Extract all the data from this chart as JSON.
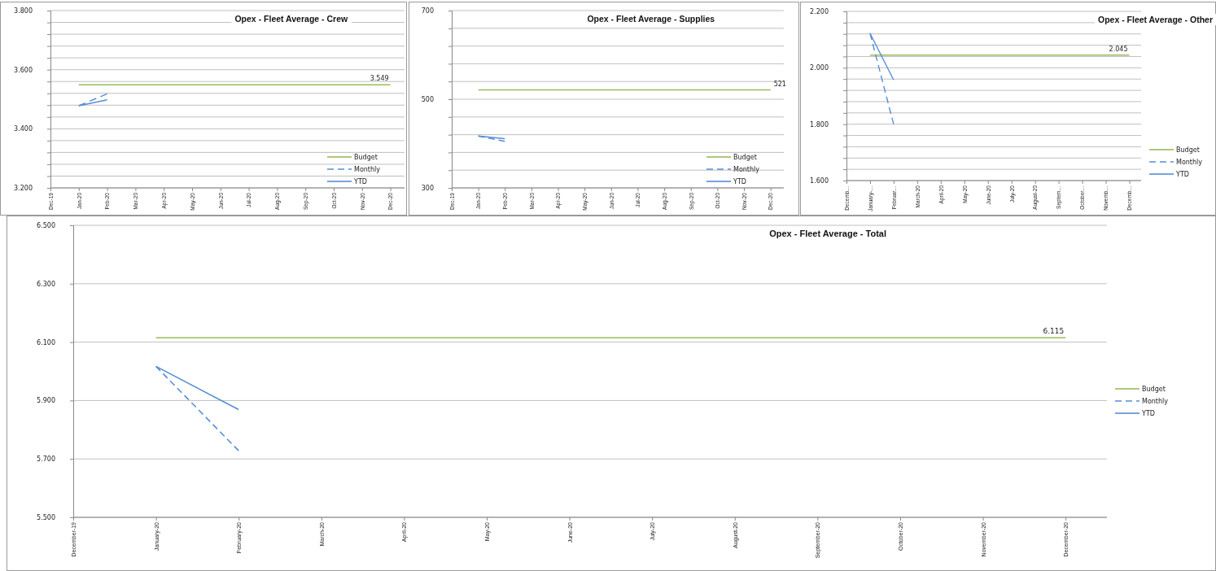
{
  "chart_data": [
    {
      "type": "line",
      "title": "Opex - Fleet Average - Crew",
      "categories": [
        "Dec-19",
        "Jan-20",
        "Feb-20",
        "Mar-20",
        "Apr-20",
        "May-20",
        "Jun-20",
        "Jul-20",
        "Aug-20",
        "Sep-20",
        "Oct-20",
        "Nov-20",
        "Dec-20"
      ],
      "series": [
        {
          "name": "Budget",
          "color": "#9bbb59",
          "line_style": "solid",
          "values": [
            null,
            3549,
            3549,
            3549,
            3549,
            3549,
            3549,
            3549,
            3549,
            3549,
            3549,
            3549,
            3549
          ],
          "value_labels": [
            null,
            null,
            null,
            null,
            null,
            null,
            null,
            null,
            null,
            null,
            null,
            null,
            "3.549"
          ]
        },
        {
          "name": "Monthly",
          "color": "#558ed5",
          "line_style": "dashed",
          "values": [
            null,
            3478,
            3518,
            null,
            null,
            null,
            null,
            null,
            null,
            null,
            null,
            null,
            null
          ]
        },
        {
          "name": "YTD",
          "color": "#558ed5",
          "line_style": "solid",
          "values": [
            null,
            3478,
            3498,
            null,
            null,
            null,
            null,
            null,
            null,
            null,
            null,
            null,
            null
          ]
        }
      ],
      "ylim": [
        3200,
        3800
      ],
      "yticks": [
        {
          "value": 3200,
          "label": "3.200"
        },
        {
          "value": 3240,
          "label": null
        },
        {
          "value": 3280,
          "label": null
        },
        {
          "value": 3320,
          "label": null
        },
        {
          "value": 3360,
          "label": null
        },
        {
          "value": 3400,
          "label": "3.400"
        },
        {
          "value": 3440,
          "label": null
        },
        {
          "value": 3480,
          "label": null
        },
        {
          "value": 3520,
          "label": null
        },
        {
          "value": 3560,
          "label": null
        },
        {
          "value": 3600,
          "label": "3.600"
        },
        {
          "value": 3640,
          "label": null
        },
        {
          "value": 3680,
          "label": null
        },
        {
          "value": 3720,
          "label": null
        },
        {
          "value": 3760,
          "label": null
        },
        {
          "value": 3800,
          "label": "3.800"
        }
      ],
      "grid": true,
      "legend": "bottom right"
    },
    {
      "type": "line",
      "title": "Opex - Fleet Average - Supplies",
      "categories": [
        "Dec-19",
        "Jan-20",
        "Feb-20",
        "Mar-20",
        "Apr-20",
        "May-20",
        "Jun-20",
        "Jul-20",
        "Aug-20",
        "Sep-20",
        "Oct-20",
        "Nov-20",
        "Dec-20"
      ],
      "series": [
        {
          "name": "Budget",
          "color": "#9bbb59",
          "line_style": "solid",
          "values": [
            null,
            521,
            521,
            521,
            521,
            521,
            521,
            521,
            521,
            521,
            521,
            521,
            521
          ],
          "value_labels": [
            null,
            null,
            null,
            null,
            null,
            null,
            null,
            null,
            null,
            null,
            null,
            null,
            "521"
          ]
        },
        {
          "name": "Monthly",
          "color": "#558ed5",
          "line_style": "dashed",
          "values": [
            null,
            417,
            405,
            null,
            null,
            null,
            null,
            null,
            null,
            null,
            null,
            null,
            null
          ]
        },
        {
          "name": "YTD",
          "color": "#558ed5",
          "line_style": "solid",
          "values": [
            null,
            417,
            411,
            null,
            null,
            null,
            null,
            null,
            null,
            null,
            null,
            null,
            null
          ]
        }
      ],
      "ylim": [
        300,
        700
      ],
      "yticks": [
        300,
        {
          "value": 340,
          "label": null
        },
        {
          "value": 380,
          "label": null
        },
        {
          "value": 420,
          "label": null
        },
        {
          "value": 460,
          "label": null
        },
        500,
        {
          "value": 540,
          "label": null
        },
        {
          "value": 580,
          "label": null
        },
        {
          "value": 620,
          "label": null
        },
        {
          "value": 660,
          "label": null
        },
        700
      ],
      "grid": true,
      "legend": "bottom right"
    },
    {
      "type": "line",
      "title": "Opex - Fleet Average - Other",
      "categories": [
        "Decemb…",
        "January-…",
        "Februar…",
        "March-20",
        "April-20",
        "May-20",
        "June-20",
        "July-20",
        "August-20",
        "Septem…",
        "October…",
        "Novemb…",
        "Decemb…"
      ],
      "series": [
        {
          "name": "Budget",
          "color": "#9bbb59",
          "line_style": "solid",
          "values": [
            null,
            2045,
            2045,
            2045,
            2045,
            2045,
            2045,
            2045,
            2045,
            2045,
            2045,
            2045,
            2045
          ],
          "value_labels": [
            null,
            null,
            null,
            null,
            null,
            null,
            null,
            null,
            null,
            null,
            null,
            null,
            "2.045"
          ]
        },
        {
          "name": "Monthly",
          "color": "#558ed5",
          "line_style": "dashed",
          "values": [
            null,
            2122,
            1800,
            null,
            null,
            null,
            null,
            null,
            null,
            null,
            null,
            null,
            null
          ]
        },
        {
          "name": "YTD",
          "color": "#558ed5",
          "line_style": "solid",
          "values": [
            null,
            2122,
            1957,
            null,
            null,
            null,
            null,
            null,
            null,
            null,
            null,
            null,
            null
          ]
        }
      ],
      "ylim": [
        1600,
        2200
      ],
      "yticks": [
        {
          "value": 1600,
          "label": "1.600"
        },
        {
          "value": 1640,
          "label": null
        },
        {
          "value": 1680,
          "label": null
        },
        {
          "value": 1720,
          "label": null
        },
        {
          "value": 1760,
          "label": null
        },
        {
          "value": 1800,
          "label": "1.800"
        },
        {
          "value": 1840,
          "label": null
        },
        {
          "value": 1880,
          "label": null
        },
        {
          "value": 1920,
          "label": null
        },
        {
          "value": 1960,
          "label": null
        },
        {
          "value": 2000,
          "label": "2.000"
        },
        {
          "value": 2040,
          "label": null
        },
        {
          "value": 2080,
          "label": null
        },
        {
          "value": 2120,
          "label": null
        },
        {
          "value": 2160,
          "label": null
        },
        {
          "value": 2200,
          "label": "2.200"
        }
      ],
      "grid": true,
      "legend": "right"
    },
    {
      "type": "line",
      "title": "Opex - Fleet Average - Total",
      "categories": [
        "December-19",
        "January-20",
        "February-20",
        "March-20",
        "April-20",
        "May-20",
        "June-20",
        "July-20",
        "August-20",
        "September-20",
        "October-20",
        "November-20",
        "December-20"
      ],
      "series": [
        {
          "name": "Budget",
          "color": "#9bbb59",
          "line_style": "solid",
          "values": [
            null,
            6115,
            6115,
            6115,
            6115,
            6115,
            6115,
            6115,
            6115,
            6115,
            6115,
            6115,
            6115
          ],
          "value_labels": [
            null,
            null,
            null,
            null,
            null,
            null,
            null,
            null,
            null,
            null,
            null,
            null,
            "6.115"
          ]
        },
        {
          "name": "Monthly",
          "color": "#558ed5",
          "line_style": "dashed",
          "values": [
            null,
            6017,
            5728,
            null,
            null,
            null,
            null,
            null,
            null,
            null,
            null,
            null,
            null
          ]
        },
        {
          "name": "YTD",
          "color": "#558ed5",
          "line_style": "solid",
          "values": [
            null,
            6017,
            5869,
            null,
            null,
            null,
            null,
            null,
            null,
            null,
            null,
            null,
            null
          ]
        }
      ],
      "ylim": [
        5500,
        6500
      ],
      "yticks": [
        {
          "value": 5500,
          "label": "5.500"
        },
        {
          "value": 5700,
          "label": "5.700"
        },
        {
          "value": 5900,
          "label": "5.900"
        },
        {
          "value": 6100,
          "label": "6.100"
        },
        {
          "value": 6300,
          "label": "6.300"
        },
        {
          "value": 6500,
          "label": "6.500"
        }
      ],
      "grid": true,
      "legend": "right"
    }
  ]
}
